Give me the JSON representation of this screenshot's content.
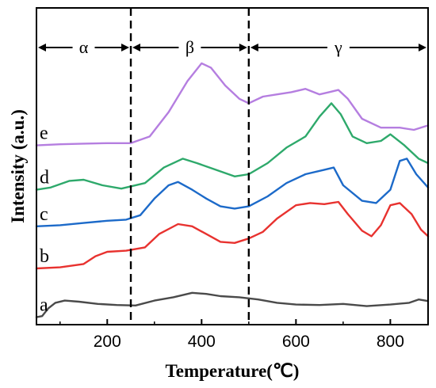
{
  "chart_data": {
    "type": "line",
    "xlabel": "Temperature(℃)",
    "ylabel": "Intensity (a.u.)",
    "xlim": [
      50,
      880
    ],
    "x_ticks": [
      200,
      400,
      600,
      800
    ],
    "y_ticks": "none",
    "grid": false,
    "legend": "none",
    "regions": [
      {
        "label": "α",
        "from": 50,
        "to": 250
      },
      {
        "label": "β",
        "from": 250,
        "to": 500
      },
      {
        "label": "γ",
        "from": 500,
        "to": 880
      }
    ],
    "dividers": [
      250,
      500
    ],
    "series": [
      {
        "name": "a",
        "color": "#4a4a4a",
        "points": [
          [
            50,
            0.05
          ],
          [
            62,
            0.1
          ],
          [
            75,
            0.45
          ],
          [
            90,
            0.7
          ],
          [
            110,
            0.8
          ],
          [
            140,
            0.75
          ],
          [
            180,
            0.65
          ],
          [
            220,
            0.6
          ],
          [
            260,
            0.58
          ],
          [
            300,
            0.8
          ],
          [
            340,
            0.95
          ],
          [
            380,
            1.15
          ],
          [
            410,
            1.1
          ],
          [
            440,
            1.0
          ],
          [
            480,
            0.95
          ],
          [
            520,
            0.85
          ],
          [
            560,
            0.7
          ],
          [
            600,
            0.62
          ],
          [
            650,
            0.6
          ],
          [
            700,
            0.65
          ],
          [
            750,
            0.55
          ],
          [
            800,
            0.62
          ],
          [
            840,
            0.7
          ],
          [
            860,
            0.85
          ],
          [
            880,
            0.78
          ]
        ]
      },
      {
        "name": "b",
        "color": "#e8322f",
        "points": [
          [
            50,
            2.25
          ],
          [
            100,
            2.3
          ],
          [
            150,
            2.45
          ],
          [
            175,
            2.8
          ],
          [
            200,
            3.0
          ],
          [
            240,
            3.05
          ],
          [
            280,
            3.2
          ],
          [
            310,
            3.8
          ],
          [
            350,
            4.25
          ],
          [
            380,
            4.15
          ],
          [
            410,
            3.8
          ],
          [
            440,
            3.45
          ],
          [
            470,
            3.4
          ],
          [
            500,
            3.6
          ],
          [
            530,
            3.9
          ],
          [
            560,
            4.5
          ],
          [
            600,
            5.1
          ],
          [
            630,
            5.2
          ],
          [
            660,
            5.15
          ],
          [
            690,
            5.25
          ],
          [
            710,
            4.7
          ],
          [
            740,
            3.95
          ],
          [
            760,
            3.7
          ],
          [
            780,
            4.2
          ],
          [
            800,
            5.1
          ],
          [
            820,
            5.2
          ],
          [
            845,
            4.7
          ],
          [
            865,
            4.0
          ],
          [
            880,
            3.7
          ]
        ]
      },
      {
        "name": "c",
        "color": "#1c6ac9",
        "points": [
          [
            50,
            4.15
          ],
          [
            100,
            4.2
          ],
          [
            150,
            4.3
          ],
          [
            200,
            4.4
          ],
          [
            240,
            4.45
          ],
          [
            270,
            4.65
          ],
          [
            300,
            5.4
          ],
          [
            330,
            6.0
          ],
          [
            350,
            6.15
          ],
          [
            380,
            5.8
          ],
          [
            410,
            5.4
          ],
          [
            440,
            5.05
          ],
          [
            470,
            4.95
          ],
          [
            500,
            5.05
          ],
          [
            540,
            5.5
          ],
          [
            580,
            6.1
          ],
          [
            620,
            6.5
          ],
          [
            660,
            6.7
          ],
          [
            680,
            6.8
          ],
          [
            700,
            6.0
          ],
          [
            740,
            5.3
          ],
          [
            770,
            5.2
          ],
          [
            800,
            5.8
          ],
          [
            820,
            7.1
          ],
          [
            835,
            7.2
          ],
          [
            855,
            6.5
          ],
          [
            880,
            5.9
          ]
        ]
      },
      {
        "name": "d",
        "color": "#2ea96b",
        "points": [
          [
            50,
            5.8
          ],
          [
            80,
            5.9
          ],
          [
            120,
            6.2
          ],
          [
            150,
            6.25
          ],
          [
            190,
            6.0
          ],
          [
            230,
            5.85
          ],
          [
            280,
            6.1
          ],
          [
            320,
            6.8
          ],
          [
            360,
            7.2
          ],
          [
            390,
            7.0
          ],
          [
            430,
            6.7
          ],
          [
            470,
            6.4
          ],
          [
            500,
            6.5
          ],
          [
            540,
            7.0
          ],
          [
            580,
            7.7
          ],
          [
            620,
            8.2
          ],
          [
            650,
            9.1
          ],
          [
            675,
            9.7
          ],
          [
            695,
            9.2
          ],
          [
            720,
            8.2
          ],
          [
            750,
            7.9
          ],
          [
            780,
            8.0
          ],
          [
            800,
            8.3
          ],
          [
            830,
            7.8
          ],
          [
            860,
            7.2
          ],
          [
            880,
            7.0
          ]
        ]
      },
      {
        "name": "e",
        "color": "#b57ee0",
        "points": [
          [
            50,
            7.8
          ],
          [
            100,
            7.85
          ],
          [
            150,
            7.88
          ],
          [
            200,
            7.9
          ],
          [
            250,
            7.9
          ],
          [
            290,
            8.2
          ],
          [
            330,
            9.3
          ],
          [
            370,
            10.7
          ],
          [
            400,
            11.5
          ],
          [
            420,
            11.3
          ],
          [
            450,
            10.5
          ],
          [
            480,
            9.9
          ],
          [
            500,
            9.7
          ],
          [
            530,
            10.0
          ],
          [
            560,
            10.1
          ],
          [
            590,
            10.2
          ],
          [
            620,
            10.35
          ],
          [
            650,
            10.1
          ],
          [
            670,
            10.2
          ],
          [
            690,
            10.3
          ],
          [
            710,
            9.9
          ],
          [
            740,
            9.0
          ],
          [
            780,
            8.6
          ],
          [
            820,
            8.6
          ],
          [
            850,
            8.5
          ],
          [
            880,
            8.7
          ]
        ]
      }
    ]
  }
}
